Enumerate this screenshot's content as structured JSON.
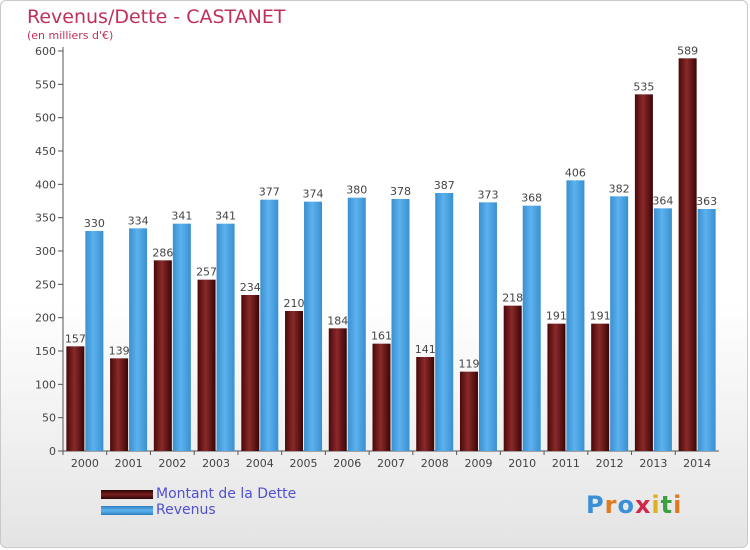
{
  "chart_data": {
    "type": "bar",
    "title": "Revenus/Dette - CASTANET",
    "subtitle": "(en milliers d'€)",
    "categories": [
      "2000",
      "2001",
      "2002",
      "2003",
      "2004",
      "2005",
      "2006",
      "2007",
      "2008",
      "2009",
      "2010",
      "2011",
      "2012",
      "2013",
      "2014"
    ],
    "series": [
      {
        "name": "Montant de la Dette",
        "color": "#7a1f1f",
        "values": [
          157,
          139,
          286,
          257,
          234,
          210,
          184,
          161,
          141,
          119,
          218,
          191,
          191,
          535,
          589
        ]
      },
      {
        "name": "Revenus",
        "color": "#4aa3e6",
        "values": [
          330,
          334,
          341,
          341,
          377,
          374,
          380,
          378,
          387,
          373,
          368,
          406,
          382,
          364,
          363
        ]
      }
    ],
    "ylim": [
      0,
      600
    ],
    "yticks": [
      0,
      50,
      100,
      150,
      200,
      250,
      300,
      350,
      400,
      450,
      500,
      550,
      600
    ],
    "grid": false,
    "legend": "bottom-left",
    "bar_labels": {
      "Montant de la Dette": [
        "157",
        "139",
        "286",
        "257",
        "234",
        "210",
        "184",
        "161",
        "141",
        "119",
        "218",
        "191",
        "191",
        "535",
        "589"
      ],
      "Revenus": [
        "330",
        "334",
        "341",
        "341",
        "377",
        "374",
        "380",
        "378",
        "387",
        "373",
        "368",
        "406",
        "382",
        "364",
        "363"
      ]
    }
  },
  "logo": {
    "text": "Proxiti"
  }
}
